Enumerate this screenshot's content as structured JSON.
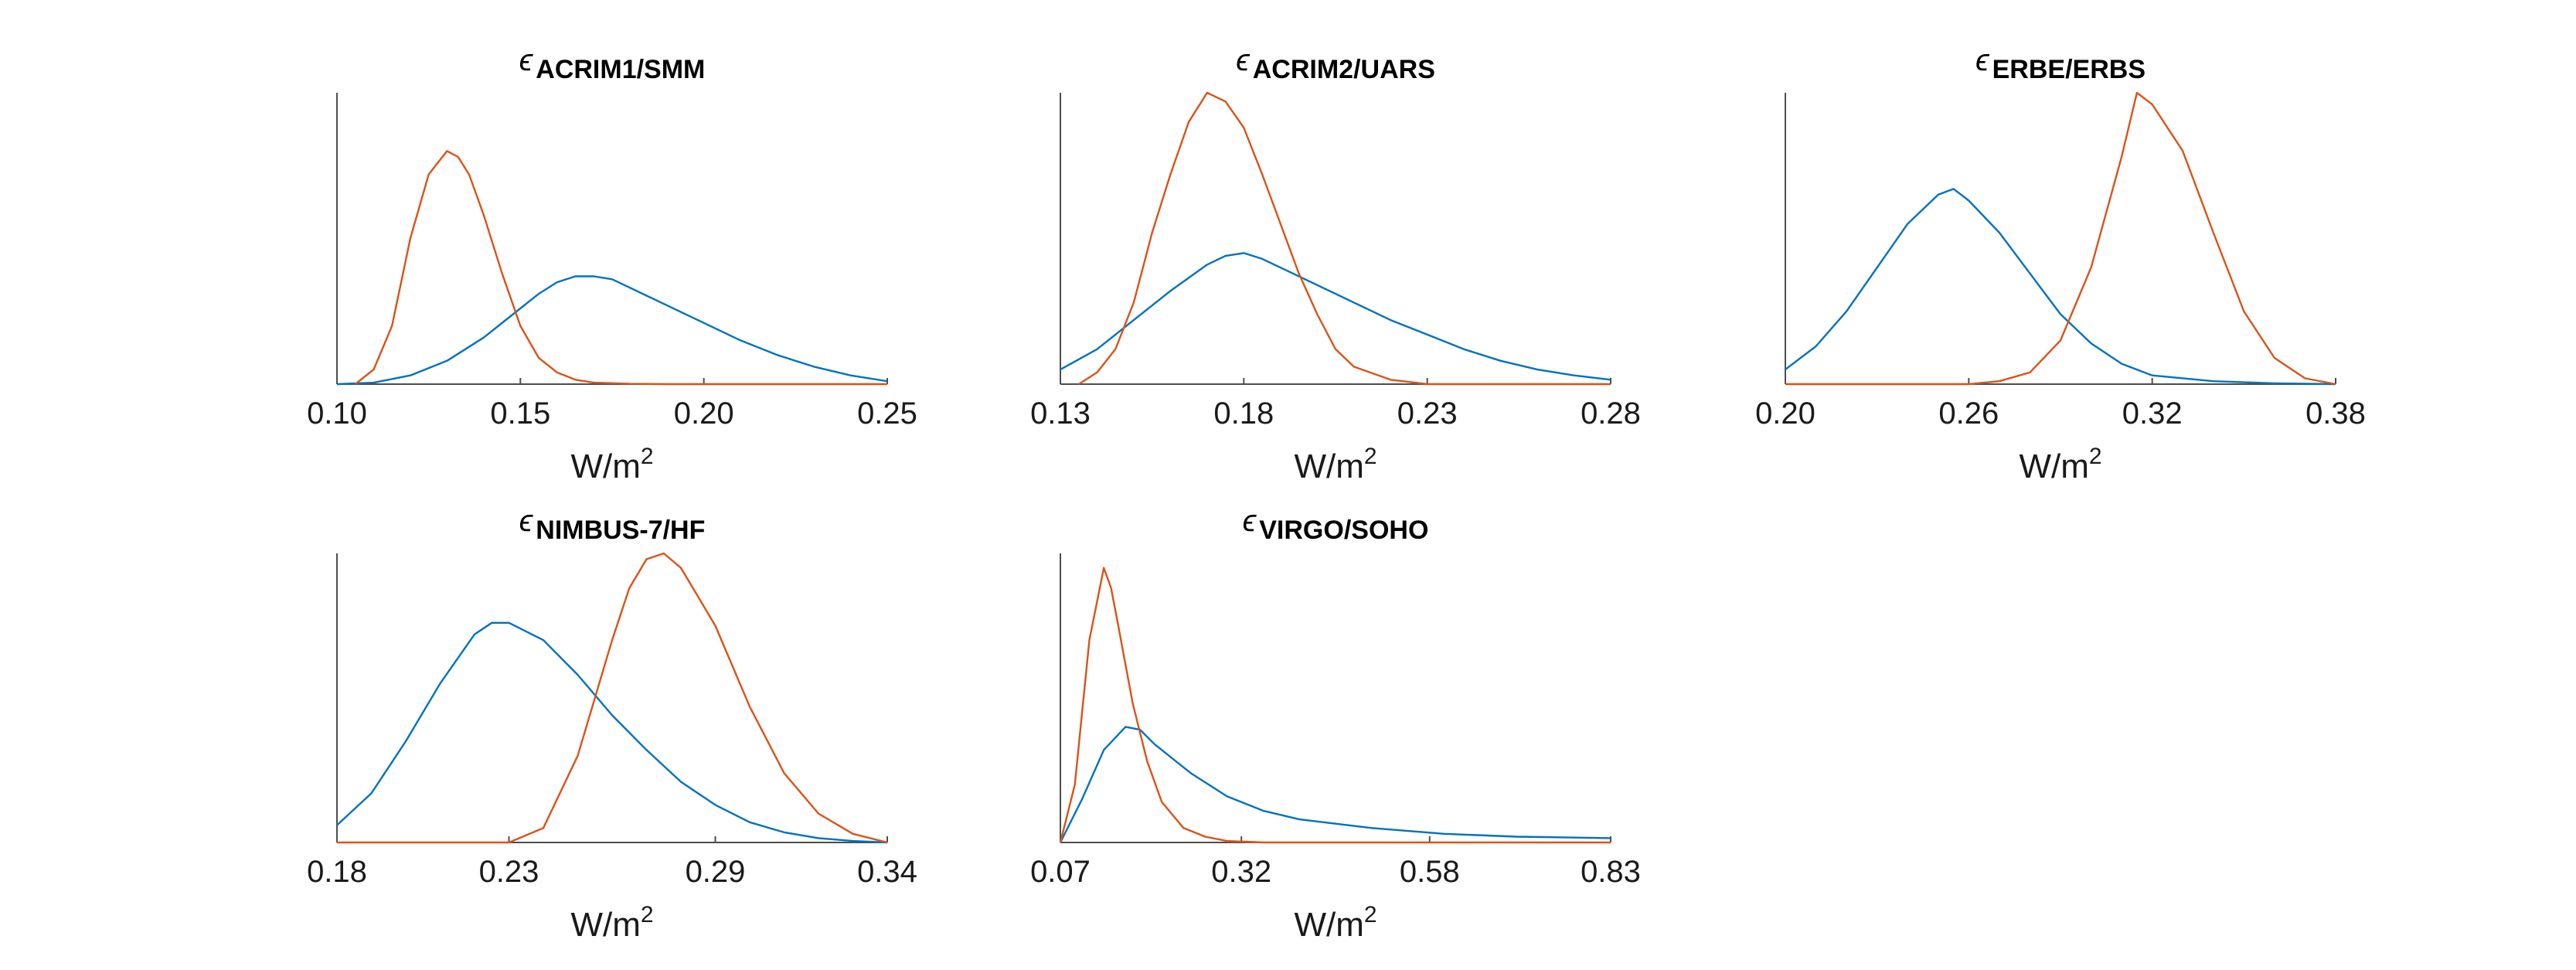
{
  "chart_data": [
    {
      "type": "line",
      "title_symbol": "ϵ",
      "title_subscript": "ACRIM1/SMM",
      "xlabel_base": "W/m",
      "xlabel_sup": "2",
      "xlim": [
        0.1,
        0.25
      ],
      "xticks": [
        0.1,
        0.15,
        0.2,
        0.25
      ],
      "xtick_labels": [
        "0.10",
        "0.15",
        "0.20",
        "0.25"
      ],
      "series": [
        {
          "color": "#0072BD",
          "x": [
            0.1,
            0.11,
            0.12,
            0.13,
            0.14,
            0.15,
            0.155,
            0.16,
            0.165,
            0.17,
            0.175,
            0.18,
            0.19,
            0.2,
            0.21,
            0.22,
            0.23,
            0.24,
            0.25
          ],
          "y": [
            0.0,
            0.005,
            0.03,
            0.08,
            0.16,
            0.26,
            0.31,
            0.35,
            0.37,
            0.37,
            0.36,
            0.33,
            0.27,
            0.21,
            0.15,
            0.1,
            0.06,
            0.03,
            0.01
          ]
        },
        {
          "color": "#D95319",
          "x": [
            0.105,
            0.11,
            0.115,
            0.12,
            0.125,
            0.13,
            0.133,
            0.136,
            0.14,
            0.145,
            0.15,
            0.155,
            0.16,
            0.165,
            0.17,
            0.18,
            0.19,
            0.25
          ],
          "y": [
            0.0,
            0.05,
            0.2,
            0.5,
            0.72,
            0.8,
            0.78,
            0.72,
            0.58,
            0.38,
            0.2,
            0.09,
            0.04,
            0.015,
            0.005,
            0.001,
            0.0,
            0.0
          ]
        }
      ]
    },
    {
      "type": "line",
      "title_symbol": "ϵ",
      "title_subscript": "ACRIM2/UARS",
      "xlabel_base": "W/m",
      "xlabel_sup": "2",
      "xlim": [
        0.13,
        0.28
      ],
      "xticks": [
        0.13,
        0.18,
        0.23,
        0.28
      ],
      "xtick_labels": [
        "0.13",
        "0.18",
        "0.23",
        "0.28"
      ],
      "series": [
        {
          "color": "#0072BD",
          "x": [
            0.13,
            0.14,
            0.15,
            0.16,
            0.17,
            0.175,
            0.18,
            0.185,
            0.19,
            0.2,
            0.21,
            0.22,
            0.23,
            0.24,
            0.25,
            0.26,
            0.27,
            0.28
          ],
          "y": [
            0.05,
            0.12,
            0.22,
            0.32,
            0.41,
            0.44,
            0.45,
            0.43,
            0.4,
            0.34,
            0.28,
            0.22,
            0.17,
            0.12,
            0.08,
            0.05,
            0.03,
            0.015
          ]
        },
        {
          "color": "#D95319",
          "x": [
            0.135,
            0.14,
            0.145,
            0.15,
            0.155,
            0.16,
            0.165,
            0.17,
            0.175,
            0.18,
            0.185,
            0.19,
            0.195,
            0.2,
            0.205,
            0.21,
            0.22,
            0.23,
            0.28
          ],
          "y": [
            0.0,
            0.04,
            0.12,
            0.28,
            0.52,
            0.72,
            0.9,
            1.0,
            0.97,
            0.88,
            0.72,
            0.55,
            0.38,
            0.24,
            0.12,
            0.06,
            0.015,
            0.0,
            0.0
          ]
        }
      ]
    },
    {
      "type": "line",
      "title_symbol": "ϵ",
      "title_subscript": "ERBE/ERBS",
      "xlabel_base": "W/m",
      "xlabel_sup": "2",
      "xlim": [
        0.2,
        0.38
      ],
      "xticks": [
        0.2,
        0.26,
        0.32,
        0.38
      ],
      "xtick_labels": [
        "0.20",
        "0.26",
        "0.32",
        "0.38"
      ],
      "series": [
        {
          "color": "#0072BD",
          "x": [
            0.2,
            0.21,
            0.22,
            0.23,
            0.24,
            0.25,
            0.255,
            0.26,
            0.27,
            0.28,
            0.29,
            0.3,
            0.31,
            0.32,
            0.34,
            0.36,
            0.38
          ],
          "y": [
            0.05,
            0.13,
            0.25,
            0.4,
            0.55,
            0.65,
            0.67,
            0.63,
            0.52,
            0.38,
            0.24,
            0.14,
            0.07,
            0.03,
            0.01,
            0.003,
            0.0
          ]
        },
        {
          "color": "#D95319",
          "x": [
            0.2,
            0.26,
            0.27,
            0.28,
            0.29,
            0.3,
            0.31,
            0.315,
            0.32,
            0.33,
            0.34,
            0.35,
            0.36,
            0.37,
            0.38
          ],
          "y": [
            0.0,
            0.0,
            0.01,
            0.04,
            0.15,
            0.4,
            0.78,
            1.0,
            0.96,
            0.8,
            0.52,
            0.25,
            0.09,
            0.02,
            0.0
          ]
        }
      ]
    },
    {
      "type": "line",
      "title_symbol": "ϵ",
      "title_subscript": "NIMBUS-7/HF",
      "xlabel_base": "W/m",
      "xlabel_sup": "2",
      "xlim": [
        0.18,
        0.34
      ],
      "xticks": [
        0.18,
        0.23,
        0.29,
        0.34
      ],
      "xtick_labels": [
        "0.18",
        "0.23",
        "0.29",
        "0.34"
      ],
      "series": [
        {
          "color": "#0072BD",
          "x": [
            0.18,
            0.19,
            0.2,
            0.21,
            0.22,
            0.225,
            0.23,
            0.24,
            0.25,
            0.26,
            0.27,
            0.28,
            0.29,
            0.3,
            0.31,
            0.32,
            0.33,
            0.34
          ],
          "y": [
            0.06,
            0.17,
            0.35,
            0.55,
            0.72,
            0.76,
            0.76,
            0.7,
            0.58,
            0.44,
            0.32,
            0.21,
            0.13,
            0.07,
            0.035,
            0.015,
            0.005,
            0.0
          ]
        },
        {
          "color": "#D95319",
          "x": [
            0.18,
            0.23,
            0.24,
            0.25,
            0.26,
            0.265,
            0.27,
            0.275,
            0.28,
            0.29,
            0.3,
            0.31,
            0.32,
            0.33,
            0.34
          ],
          "y": [
            0.0,
            0.0,
            0.05,
            0.3,
            0.7,
            0.88,
            0.98,
            1.0,
            0.95,
            0.75,
            0.47,
            0.24,
            0.1,
            0.03,
            0.0
          ]
        }
      ]
    },
    {
      "type": "line",
      "title_symbol": "ϵ",
      "title_subscript": "VIRGO/SOHO",
      "xlabel_base": "W/m",
      "xlabel_sup": "2",
      "xlim": [
        0.07,
        0.83
      ],
      "xticks": [
        0.07,
        0.32,
        0.58,
        0.83
      ],
      "xtick_labels": [
        "0.07",
        "0.32",
        "0.58",
        "0.83"
      ],
      "series": [
        {
          "color": "#0072BD",
          "x": [
            0.07,
            0.1,
            0.13,
            0.16,
            0.18,
            0.2,
            0.25,
            0.3,
            0.35,
            0.4,
            0.5,
            0.6,
            0.7,
            0.83
          ],
          "y": [
            0.0,
            0.15,
            0.32,
            0.4,
            0.39,
            0.34,
            0.24,
            0.16,
            0.11,
            0.08,
            0.05,
            0.03,
            0.02,
            0.015
          ]
        },
        {
          "color": "#D95319",
          "x": [
            0.07,
            0.09,
            0.11,
            0.13,
            0.14,
            0.15,
            0.17,
            0.19,
            0.21,
            0.24,
            0.27,
            0.3,
            0.35,
            0.83
          ],
          "y": [
            0.0,
            0.2,
            0.7,
            0.95,
            0.88,
            0.75,
            0.48,
            0.28,
            0.14,
            0.05,
            0.02,
            0.005,
            0.0,
            0.0
          ]
        }
      ]
    }
  ]
}
